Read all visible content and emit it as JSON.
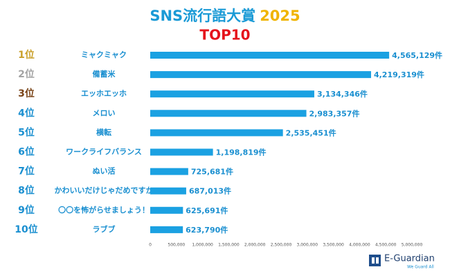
{
  "chart_data": {
    "type": "hbar",
    "title": "SNS流行語大賞",
    "title_highlight": "2025",
    "subtitle": "TOP10",
    "ranks": [
      "1位",
      "2位",
      "3位",
      "4位",
      "5位",
      "6位",
      "7位",
      "8位",
      "9位",
      "10位"
    ],
    "rank_colors": [
      "#c9a02a",
      "#a3a3a3",
      "#7a4418",
      "#1a8fd0",
      "#1a8fd0",
      "#1a8fd0",
      "#1a8fd0",
      "#1a8fd0",
      "#1a8fd0",
      "#1a8fd0"
    ],
    "categories": [
      "ミャクミャク",
      "備蓄米",
      "エッホエッホ",
      "メロい",
      "横転",
      "ワークライフバランス",
      "ぬい活",
      "かわいいだけじゃだめですか",
      "〇〇を怖がらせましょう！",
      "ラブブ"
    ],
    "values": [
      4565129,
      4219319,
      3134346,
      2983357,
      2535451,
      1198819,
      725681,
      687013,
      625691,
      623790
    ],
    "value_labels": [
      "4,565,129件",
      "4,219,319件",
      "3,134,346件",
      "2,983,357件",
      "2,535,451件",
      "1,198,819件",
      "725,681件",
      "687,013件",
      "625,691件",
      "623,790件"
    ],
    "color": "#1ba1e2",
    "xlim": [
      0,
      5000000
    ],
    "xticks": [
      0,
      {
        "value": 500000,
        "label": "500,000"
      },
      {
        "value": 1000000,
        "label": "1,000,000"
      },
      {
        "value": 1500000,
        "label": "1,500,000"
      },
      {
        "value": 2000000,
        "label": "2,000,000"
      },
      {
        "value": 2500000,
        "label": "2,500,000"
      },
      {
        "value": 3000000,
        "label": "3,000,000"
      },
      {
        "value": 3500000,
        "label": "3,500,000"
      },
      {
        "value": 4000000,
        "label": "4,000,000"
      },
      {
        "value": 4500000,
        "label": "4,500,000"
      },
      {
        "value": 5000000,
        "label": "5,000,000"
      }
    ],
    "grid": false
  },
  "logo": {
    "name": "E-Guardian",
    "tagline": "We Guard All"
  }
}
